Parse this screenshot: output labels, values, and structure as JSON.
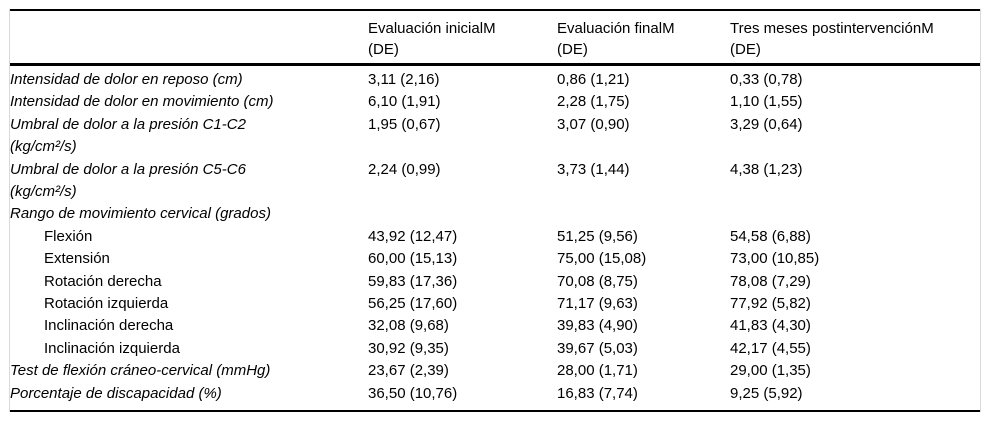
{
  "table": {
    "header": {
      "corner": "",
      "cols": [
        {
          "line1": "Evaluación inicialM",
          "line2": "(DE)"
        },
        {
          "line1": "Evaluación finalM",
          "line2": "(DE)"
        },
        {
          "line1": "Tres meses postintervenciónM",
          "line2": "(DE)"
        }
      ]
    },
    "rows": [
      {
        "label": "Intensidad de dolor en reposo (cm)",
        "label2": "",
        "values": [
          "3,11 (2,16)",
          "0,86 (1,21)",
          "0,33 (0,78)"
        ]
      },
      {
        "label": "Intensidad de dolor en movimiento (cm)",
        "label2": "",
        "values": [
          "6,10 (1,91)",
          "2,28 (1,75)",
          "1,10 (1,55)"
        ]
      },
      {
        "label": "Umbral de dolor a la presión C1-C2",
        "label2": "(kg/cm²/s)",
        "values": [
          "1,95 (0,67)",
          "3,07 (0,90)",
          "3,29 (0,64)"
        ]
      },
      {
        "label": "Umbral de dolor a la presión C5-C6",
        "label2": "(kg/cm²/s)",
        "values": [
          "2,24 (0,99)",
          "3,73 (1,44)",
          "4,38 (1,23)"
        ]
      },
      {
        "label": "Rango de movimiento cervical (grados)",
        "label2": "",
        "values": [
          "",
          "",
          ""
        ]
      },
      {
        "label": "Flexión",
        "label2": "",
        "values": [
          "43,92 (12,47)",
          "51,25 (9,56)",
          "54,58 (6,88)"
        ]
      },
      {
        "label": "Extensión",
        "label2": "",
        "values": [
          "60,00 (15,13)",
          "75,00 (15,08)",
          "73,00 (10,85)"
        ]
      },
      {
        "label": "Rotación derecha",
        "label2": "",
        "values": [
          "59,83 (17,36)",
          "70,08 (8,75)",
          "78,08 (7,29)"
        ]
      },
      {
        "label": "Rotación izquierda",
        "label2": "",
        "values": [
          "56,25 (17,60)",
          "71,17 (9,63)",
          "77,92 (5,82)"
        ]
      },
      {
        "label": "Inclinación derecha",
        "label2": "",
        "values": [
          "32,08 (9,68)",
          "39,83 (4,90)",
          "41,83 (4,30)"
        ]
      },
      {
        "label": "Inclinación izquierda",
        "label2": "",
        "values": [
          "30,92 (9,35)",
          "39,67 (5,03)",
          "42,17 (4,55)"
        ]
      },
      {
        "label": "Test de flexión cráneo-cervical (mmHg)",
        "label2": "",
        "values": [
          "23,67 (2,39)",
          "28,00 (1,71)",
          "29,00 (1,35)"
        ]
      },
      {
        "label": "Porcentaje de discapacidad (%)",
        "label2": "",
        "values": [
          "36,50 (10,76)",
          "16,83 (7,74)",
          "9,25 (5,92)"
        ]
      }
    ]
  }
}
